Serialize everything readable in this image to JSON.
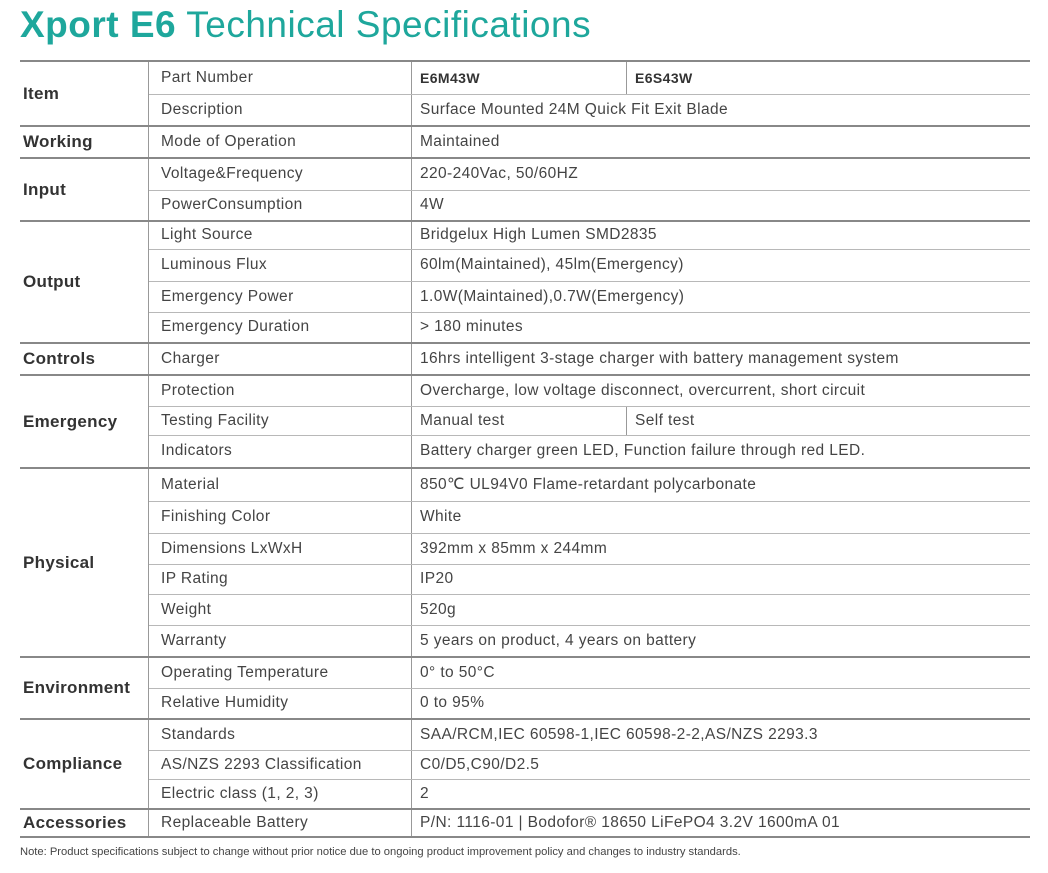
{
  "title": {
    "bold": "Xport E6",
    "rest": "Technical Specifications"
  },
  "groups": [
    {
      "name": "Item",
      "rows": [
        {
          "label": "Part Number",
          "values": [
            "E6M43W",
            "E6S43W"
          ],
          "bold": true
        },
        {
          "label": "Description",
          "values": [
            "Surface Mounted 24M Quick Fit Exit Blade"
          ]
        }
      ]
    },
    {
      "name": "Working",
      "rows": [
        {
          "label": "Mode of Operation",
          "values": [
            "Maintained"
          ]
        }
      ]
    },
    {
      "name": "Input",
      "rows": [
        {
          "label": "Voltage&Frequency",
          "values": [
            "220-240Vac, 50/60HZ"
          ]
        },
        {
          "label": "PowerConsumption",
          "values": [
            "4W"
          ]
        }
      ]
    },
    {
      "name": "Output",
      "rows": [
        {
          "label": "Light Source",
          "values": [
            "Bridgelux High Lumen SMD2835"
          ]
        },
        {
          "label": "Luminous Flux",
          "values": [
            "60lm(Maintained), 45lm(Emergency)"
          ]
        },
        {
          "label": "Emergency Power",
          "values": [
            "1.0W(Maintained),0.7W(Emergency)"
          ]
        },
        {
          "label": "Emergency Duration",
          "values": [
            "> 180 minutes"
          ]
        }
      ]
    },
    {
      "name": "Controls",
      "rows": [
        {
          "label": "Charger",
          "values": [
            "16hrs intelligent 3-stage charger with battery management system"
          ]
        }
      ]
    },
    {
      "name": "Emergency",
      "rows": [
        {
          "label": "Protection",
          "values": [
            "Overcharge, low voltage disconnect, overcurrent, short circuit"
          ]
        },
        {
          "label": "Testing Facility",
          "values": [
            "Manual test",
            "Self test"
          ]
        },
        {
          "label": "Indicators",
          "values": [
            "Battery charger green LED, Function failure through red LED."
          ]
        }
      ]
    },
    {
      "name": "Physical",
      "rows": [
        {
          "label": "Material",
          "values": [
            "850℃ UL94V0 Flame-retardant polycarbonate"
          ]
        },
        {
          "label": "Finishing Color",
          "values": [
            "White"
          ]
        },
        {
          "label": "Dimensions  LxWxH",
          "values": [
            "392mm x 85mm x 244mm"
          ]
        },
        {
          "label": "IP Rating",
          "values": [
            "IP20"
          ]
        },
        {
          "label": "Weight",
          "values": [
            "520g"
          ]
        },
        {
          "label": "Warranty",
          "values": [
            "5 years on product, 4 years on battery"
          ]
        }
      ]
    },
    {
      "name": "Environment",
      "rows": [
        {
          "label": "Operating Temperature",
          "values": [
            "0° to 50°C"
          ]
        },
        {
          "label": "Relative Humidity",
          "values": [
            "0 to 95%"
          ]
        }
      ]
    },
    {
      "name": "Compliance",
      "rows": [
        {
          "label": "Standards",
          "values": [
            "SAA/RCM,IEC 60598-1,IEC 60598-2-2,AS/NZS 2293.3"
          ]
        },
        {
          "label": "AS/NZS 2293 Classification",
          "values": [
            "C0/D5,C90/D2.5"
          ]
        },
        {
          "label": "Electric class (1, 2, 3)",
          "values": [
            "2"
          ]
        }
      ]
    },
    {
      "name": "Accessories",
      "rows": [
        {
          "label": "Replaceable Battery",
          "values": [
            "P/N: 1116-01 | Bodofor® 18650 LiFePO4 3.2V 1600mA 01"
          ]
        }
      ]
    }
  ],
  "note": "Note: Product specifications subject to change without prior notice due to ongoing product improvement policy and changes to industry standards."
}
